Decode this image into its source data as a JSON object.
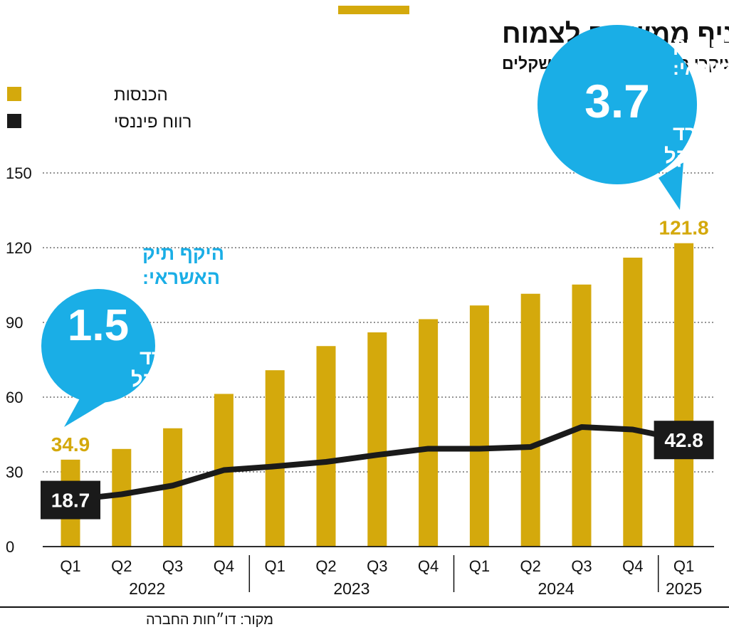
{
  "chart_data": {
    "type": "bar",
    "title": "מניף ממשיכה לצמוח",
    "subtitle": "עיקרי התוצאות, במיליוני שקלים",
    "categories": [
      "Q1",
      "Q2",
      "Q3",
      "Q4",
      "Q1",
      "Q2",
      "Q3",
      "Q4",
      "Q1",
      "Q2",
      "Q3",
      "Q4",
      "Q1"
    ],
    "years": [
      {
        "label": "2022",
        "start": 0,
        "end": 3
      },
      {
        "label": "2023",
        "start": 4,
        "end": 7
      },
      {
        "label": "2024",
        "start": 8,
        "end": 11
      },
      {
        "label": "2025",
        "start": 12,
        "end": 12
      }
    ],
    "series": [
      {
        "name": "הכנסות",
        "type": "bar",
        "color": "#d4a90c",
        "values": [
          34.9,
          39.2,
          47.5,
          61.3,
          70.8,
          80.5,
          86.0,
          91.3,
          96.8,
          101.5,
          105.2,
          116.0,
          121.8
        ]
      },
      {
        "name": "רווח פיננסי",
        "type": "line",
        "color": "#1a1a1a",
        "values": [
          18.7,
          21.0,
          24.5,
          30.7,
          32.2,
          34.0,
          36.8,
          39.3,
          39.3,
          40.0,
          48.0,
          47.0,
          42.8
        ]
      }
    ],
    "ylim": [
      0,
      150
    ],
    "yticks": [
      0,
      30,
      60,
      90,
      120,
      150
    ],
    "data_labels": [
      {
        "series": 0,
        "index": 0,
        "text": "34.9"
      },
      {
        "series": 0,
        "index": 12,
        "text": "121.8"
      },
      {
        "series": 1,
        "index": 0,
        "text": "18.7"
      },
      {
        "series": 1,
        "index": 12,
        "text": "42.8"
      }
    ],
    "annotations": [
      {
        "index": 0,
        "heading_line1": "היקף תיק",
        "heading_line2": "האשראי:",
        "value": "1.5",
        "unit_line1": "מיליארד",
        "unit_line2": "שקל"
      },
      {
        "index": 12,
        "heading_line1": "היקף תיק",
        "heading_line2": "האשראי:",
        "value": "3.7",
        "unit_line1": "מיליארד",
        "unit_line2": "שקל"
      }
    ],
    "grid": true,
    "legend_position": "top-left",
    "source": "מקור: דו״חות החברה",
    "colors": {
      "bar": "#d4a90c",
      "line": "#1a1a1a",
      "bubble": "#1aaee6",
      "accent": "#d4a90c"
    }
  }
}
